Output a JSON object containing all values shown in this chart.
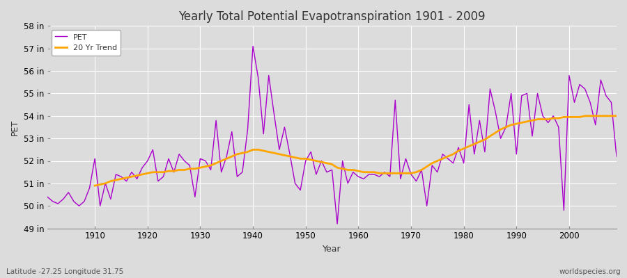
{
  "title": "Yearly Total Potential Evapotranspiration 1901 - 2009",
  "ylabel": "PET",
  "xlabel": "Year",
  "subtitle_lat": "Latitude -27.25 Longitude 31.75",
  "watermark": "worldspecies.org",
  "pet_color": "#AA00CC",
  "trend_color": "#FFA500",
  "background_color": "#DCDCDC",
  "plot_bg_color": "#DCDCDC",
  "grid_color": "#FFFFFF",
  "ylim_min": 49,
  "ylim_max": 58,
  "yticks": [
    49,
    50,
    51,
    52,
    53,
    54,
    55,
    56,
    57,
    58
  ],
  "ytick_labels": [
    "49 in",
    "50 in",
    "51 in",
    "52 in",
    "53 in",
    "54 in",
    "55 in",
    "56 in",
    "57 in",
    "58 in"
  ],
  "years": [
    1901,
    1902,
    1903,
    1904,
    1905,
    1906,
    1907,
    1908,
    1909,
    1910,
    1911,
    1912,
    1913,
    1914,
    1915,
    1916,
    1917,
    1918,
    1919,
    1920,
    1921,
    1922,
    1923,
    1924,
    1925,
    1926,
    1927,
    1928,
    1929,
    1930,
    1931,
    1932,
    1933,
    1934,
    1935,
    1936,
    1937,
    1938,
    1939,
    1940,
    1941,
    1942,
    1943,
    1944,
    1945,
    1946,
    1947,
    1948,
    1949,
    1950,
    1951,
    1952,
    1953,
    1954,
    1955,
    1956,
    1957,
    1958,
    1959,
    1960,
    1961,
    1962,
    1963,
    1964,
    1965,
    1966,
    1967,
    1968,
    1969,
    1970,
    1971,
    1972,
    1973,
    1974,
    1975,
    1976,
    1977,
    1978,
    1979,
    1980,
    1981,
    1982,
    1983,
    1984,
    1985,
    1986,
    1987,
    1988,
    1989,
    1990,
    1991,
    1992,
    1993,
    1994,
    1995,
    1996,
    1997,
    1998,
    1999,
    2000,
    2001,
    2002,
    2003,
    2004,
    2005,
    2006,
    2007,
    2008,
    2009
  ],
  "pet_values": [
    50.4,
    50.2,
    50.1,
    50.3,
    50.6,
    50.2,
    50.0,
    50.2,
    50.8,
    52.1,
    50.0,
    51.0,
    50.3,
    51.4,
    51.3,
    51.1,
    51.5,
    51.2,
    51.7,
    52.0,
    52.5,
    51.1,
    51.3,
    52.1,
    51.5,
    52.3,
    52.0,
    51.8,
    50.4,
    52.1,
    52.0,
    51.6,
    53.8,
    51.5,
    52.2,
    53.3,
    51.3,
    51.5,
    53.4,
    57.1,
    55.7,
    53.2,
    55.8,
    54.1,
    52.5,
    53.5,
    52.3,
    51.0,
    50.7,
    52.0,
    52.4,
    51.4,
    52.0,
    51.5,
    51.6,
    49.2,
    52.0,
    51.0,
    51.5,
    51.3,
    51.2,
    51.4,
    51.4,
    51.3,
    51.5,
    51.3,
    54.7,
    51.2,
    52.1,
    51.4,
    51.1,
    51.6,
    50.0,
    51.8,
    51.5,
    52.3,
    52.1,
    51.9,
    52.6,
    51.9,
    54.5,
    52.3,
    53.8,
    52.4,
    55.2,
    54.2,
    53.0,
    53.5,
    55.0,
    52.3,
    54.9,
    55.0,
    53.1,
    55.0,
    54.0,
    53.7,
    54.0,
    53.5,
    49.8,
    55.8,
    54.6,
    55.4,
    55.2,
    54.6,
    53.6,
    55.6,
    54.9,
    54.6,
    52.2
  ],
  "trend_values": [
    null,
    null,
    null,
    null,
    null,
    null,
    null,
    null,
    null,
    50.9,
    50.95,
    51.0,
    51.1,
    51.15,
    51.2,
    51.25,
    51.3,
    51.35,
    51.4,
    51.45,
    51.5,
    51.5,
    51.5,
    51.55,
    51.55,
    51.6,
    51.6,
    51.65,
    51.65,
    51.7,
    51.75,
    51.8,
    51.9,
    52.0,
    52.1,
    52.2,
    52.3,
    52.35,
    52.4,
    52.5,
    52.5,
    52.45,
    52.4,
    52.35,
    52.3,
    52.25,
    52.2,
    52.15,
    52.1,
    52.1,
    52.05,
    52.0,
    51.95,
    51.9,
    51.85,
    51.7,
    51.65,
    51.6,
    51.6,
    51.55,
    51.5,
    51.5,
    51.5,
    51.45,
    51.45,
    51.45,
    51.45,
    51.45,
    51.45,
    51.45,
    51.5,
    51.6,
    51.75,
    51.9,
    52.0,
    52.1,
    52.2,
    52.3,
    52.45,
    52.55,
    52.65,
    52.75,
    52.85,
    52.95,
    53.1,
    53.25,
    53.4,
    53.5,
    53.6,
    53.65,
    53.7,
    53.75,
    53.8,
    53.85,
    53.85,
    53.85,
    53.9,
    53.9,
    53.95,
    53.95,
    53.95,
    53.95,
    54.0,
    54.0,
    54.0,
    54.0,
    54.0,
    54.0,
    54.0
  ]
}
